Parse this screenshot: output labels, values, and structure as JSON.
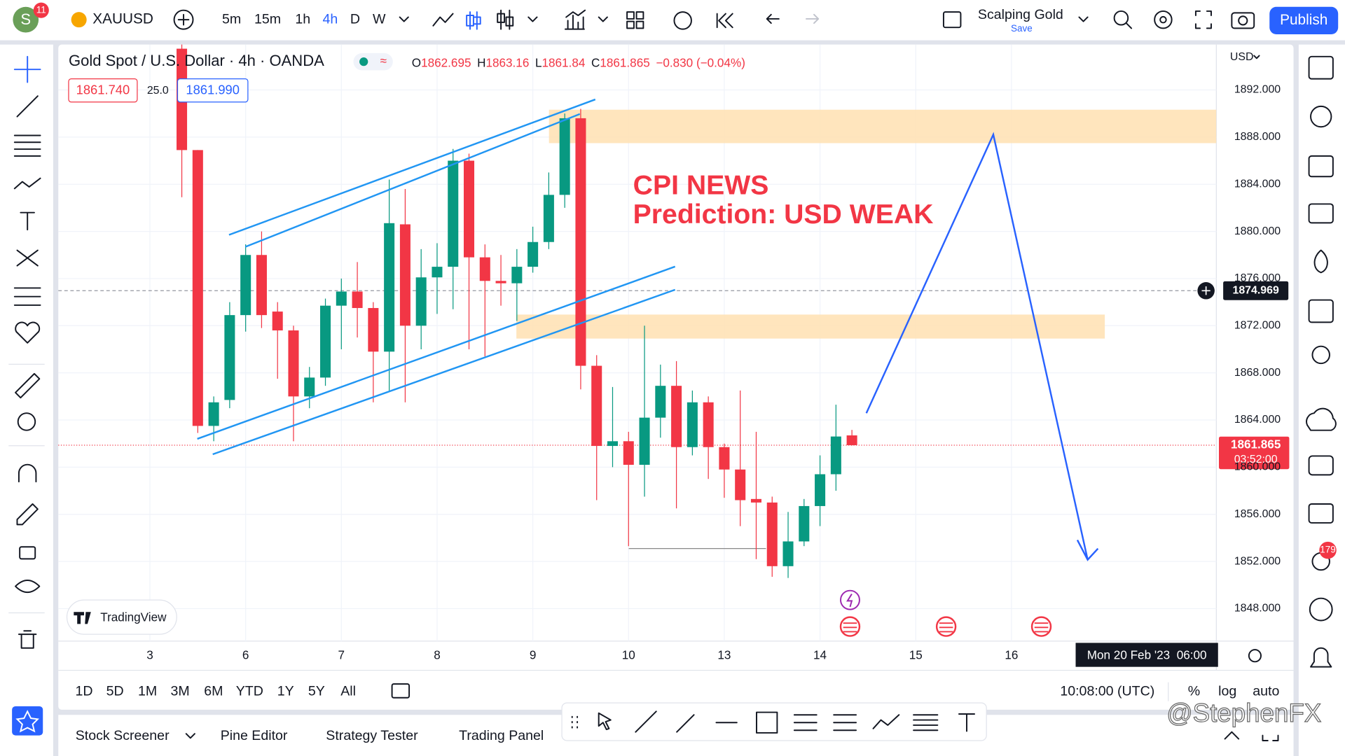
{
  "header": {
    "avatar": "S",
    "notifications": "11",
    "symbol": "XAUUSD",
    "intervals": [
      "5m",
      "15m",
      "1h",
      "4h",
      "D",
      "W"
    ],
    "layout_name": "Scalping Gold",
    "layout_status": "Save",
    "publish": "Publish"
  },
  "legend": {
    "title": "Gold Spot / U.S. Dollar · 4h · OANDA",
    "open_label": "O",
    "high_label": "H",
    "low_label": "L",
    "close_label": "C",
    "change": "−0.830 (−0.04%)",
    "sell": "1861.740",
    "spread": "25.0",
    "buy": "1861.990"
  },
  "price_axis": {
    "currency": "USD",
    "countdown": "03:52:00"
  },
  "time_axis": {
    "crosshair_time": "Mon 20 Feb '23  06:00"
  },
  "range_bar": {
    "ranges": [
      "1D",
      "5D",
      "1M",
      "3M",
      "6M",
      "YTD",
      "1Y",
      "5Y",
      "All"
    ],
    "clock": "10:08:00 (UTC)",
    "percent": "%",
    "log": "log",
    "auto": "auto"
  },
  "bottom_tabs": [
    "Stock Screener",
    "Pine Editor",
    "Strategy Tester",
    "Trading Panel"
  ],
  "watermark": "TradingView",
  "credit": "@StephenFX",
  "alerts_badge": "179",
  "chart_data": {
    "type": "candlestick",
    "title": "Gold Spot / U.S. Dollar · 4h · OANDA",
    "x": [
      0,
      1,
      2,
      3,
      4,
      5,
      6,
      7,
      8,
      9,
      10,
      11,
      12,
      13,
      14,
      15,
      16,
      17,
      18,
      19,
      20,
      21,
      22,
      23,
      24,
      25,
      26,
      27,
      28,
      29,
      30,
      31,
      32,
      33,
      34,
      35,
      36,
      37,
      38,
      39,
      40,
      41,
      42
    ],
    "open": [
      1895.5,
      1886.9,
      1863.5,
      1865.7,
      1872.9,
      1878,
      1873.2,
      1871.6,
      1866,
      1867.6,
      1873.7,
      1874.9,
      1873.5,
      1869.8,
      1880.6,
      1872,
      1876.1,
      1877,
      1886,
      1877.8,
      1875.8,
      1875.6,
      1877,
      1879.1,
      1883.1,
      1889.6,
      1868.6,
      1861.8,
      1862.2,
      1860.2,
      1864.2,
      1866.9,
      1861.7,
      1865.5,
      1861.7,
      1859.8,
      1857.3,
      1857,
      1851.6,
      1853.7,
      1856.7,
      1859.4,
      1862.695
    ],
    "high": [
      1896,
      1886.9,
      1866,
      1874,
      1878.9,
      1880,
      1874,
      1872,
      1868.5,
      1874.3,
      1876,
      1877.4,
      1874,
      1884.4,
      1883.6,
      1878.5,
      1879,
      1887,
      1886.6,
      1878.9,
      1878,
      1878.5,
      1880.4,
      1885,
      1890,
      1890.4,
      1869.5,
      1866.8,
      1863,
      1872,
      1868.7,
      1869,
      1866.5,
      1866,
      1862,
      1866.5,
      1863,
      1857.5,
      1856.2,
      1857.3,
      1861,
      1865.3,
      1863.16
    ],
    "low": [
      1882.9,
      1862.9,
      1862.2,
      1865,
      1871.5,
      1871.8,
      1867.5,
      1862.2,
      1865,
      1866.9,
      1870,
      1871,
      1865.5,
      1866.5,
      1865.5,
      1870,
      1873,
      1873.4,
      1870,
      1869.4,
      1873.7,
      1872.4,
      1876.5,
      1878.5,
      1882,
      1866.6,
      1857.2,
      1860,
      1853.3,
      1857.5,
      1862.5,
      1856.5,
      1861,
      1859,
      1857.4,
      1855,
      1852.2,
      1850.7,
      1850.6,
      1853.3,
      1855,
      1858,
      1861.84
    ],
    "close": [
      1886.9,
      1863.5,
      1865.5,
      1872.9,
      1878,
      1872.9,
      1871.6,
      1866,
      1867.6,
      1873.7,
      1874.9,
      1873.5,
      1869.8,
      1880.7,
      1872,
      1876.1,
      1877,
      1886,
      1877.8,
      1875.8,
      1875.6,
      1877,
      1879.1,
      1883.1,
      1889.6,
      1868.6,
      1861.8,
      1862.2,
      1860.2,
      1864.2,
      1866.9,
      1861.7,
      1865.5,
      1861.7,
      1859.8,
      1857.2,
      1857,
      1851.6,
      1853.7,
      1856.7,
      1859.4,
      1862.6,
      1861.865
    ],
    "color_up": "#089981",
    "color_down": "#f23645",
    "ylim": [
      1845.24,
      1895.85
    ],
    "yticks": [
      {
        "value": 1848,
        "label": "1848.000"
      },
      {
        "value": 1852,
        "label": "1852.000"
      },
      {
        "value": 1856,
        "label": "1856.000"
      },
      {
        "value": 1860,
        "label": "1860.000"
      },
      {
        "value": 1864,
        "label": "1864.000"
      },
      {
        "value": 1868,
        "label": "1868.000"
      },
      {
        "value": 1872,
        "label": "1872.000"
      },
      {
        "value": 1876,
        "label": "1876.000"
      },
      {
        "value": 1880,
        "label": "1880.000"
      },
      {
        "value": 1884,
        "label": "1884.000"
      },
      {
        "value": 1888,
        "label": "1888.000"
      },
      {
        "value": 1892,
        "label": "1892.000"
      }
    ],
    "xlim": [
      -7.74,
      64.84
    ],
    "xticks": [
      {
        "value": -2,
        "label": "3"
      },
      {
        "value": 4,
        "label": "6"
      },
      {
        "value": 10,
        "label": "7"
      },
      {
        "value": 16,
        "label": "8"
      },
      {
        "value": 22,
        "label": "9"
      },
      {
        "value": 28,
        "label": "10"
      },
      {
        "value": 34,
        "label": "13"
      },
      {
        "value": 40,
        "label": "14"
      },
      {
        "value": 46,
        "label": "15"
      },
      {
        "value": 52,
        "label": "16"
      }
    ],
    "crosshair": 1874.969,
    "grid": true,
    "annotations": [
      "CPI NEWS",
      "Prediction: USD WEAK"
    ]
  }
}
